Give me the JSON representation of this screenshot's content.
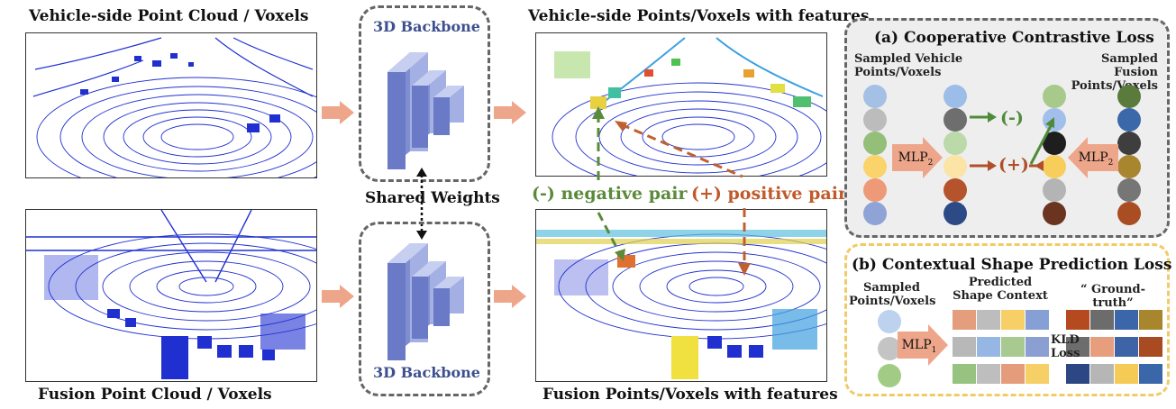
{
  "left": {
    "vehicle_title": "Vehicle-side Point Cloud / Voxels",
    "fusion_title": "Fusion Point Cloud / Voxels"
  },
  "backbone": {
    "top_label": "3D Backbone",
    "bottom_label": "3D Backbone",
    "shared_label": "Shared Weights"
  },
  "middle": {
    "vehicle_title": "Vehicle-side Points/Voxels with features",
    "fusion_title": "Fusion Points/Voxels with features",
    "negative_label": "(-) negative pair",
    "positive_label": "(+) positive pair"
  },
  "panel_a": {
    "title": "(a) Cooperative Contrastive Loss",
    "left_caption_1": "Sampled Vehicle",
    "left_caption_2": "Points/Voxels",
    "right_caption_1": "Sampled Fusion",
    "right_caption_2": "Points/Voxels",
    "mlp_left": "MLP",
    "mlp_left_sub": "2",
    "mlp_right": "MLP",
    "mlp_right_sub": "2",
    "minus": "(-)",
    "plus": "(+)",
    "colors": {
      "col1": [
        "#a4c0e4",
        "#bcbcbc",
        "#93bf78",
        "#fad36a",
        "#ee9a78",
        "#8fa3d6"
      ],
      "col2": [
        "#9cbde8",
        "#6e6e6e",
        "#bcd9a9",
        "#fbe4a6",
        "#b5532c",
        "#2e4a86"
      ],
      "col3": [
        "#a7c98c",
        "#a1bfea",
        "#1e1e1e",
        "#f7cd5c",
        "#b4b4b4",
        "#6b3420"
      ],
      "col4": [
        "#5b7b3d",
        "#3a68a8",
        "#3e3e3e",
        "#a88630",
        "#767676",
        "#a94d22"
      ]
    }
  },
  "panel_b": {
    "title": "(b) Contextual Shape Prediction Loss",
    "sampled_1": "Sampled",
    "sampled_2": "Points/Voxels",
    "pred_1": "Predicted",
    "pred_2": "Shape Context",
    "gt": "“ Ground-truth”",
    "mlp": "MLP",
    "mlp_sub": "1",
    "kld_1": "KLD",
    "kld_2": "Loss",
    "circle_colors": [
      "#bcd2ee",
      "#c4c4c4",
      "#a2cc86"
    ],
    "pred_rows": [
      [
        "#e49e7e",
        "#bdbdbd",
        "#f6cf66",
        "#86a0d6"
      ],
      [
        "#b8b8b8",
        "#96b7e4",
        "#a8c990",
        "#8b9fd2"
      ],
      [
        "#97c380",
        "#bebebe",
        "#e59c7a",
        "#f6cf66"
      ]
    ],
    "gt_rows": [
      [
        "#b54a20",
        "#6c6c6c",
        "#3b67aa",
        "#a8862e"
      ],
      [
        "#6d6d6d",
        "#e79e7c",
        "#3c64a6",
        "#a84a22"
      ],
      [
        "#2d4684",
        "#b6b6b6",
        "#f5cb55",
        "#3a66aa"
      ]
    ]
  }
}
